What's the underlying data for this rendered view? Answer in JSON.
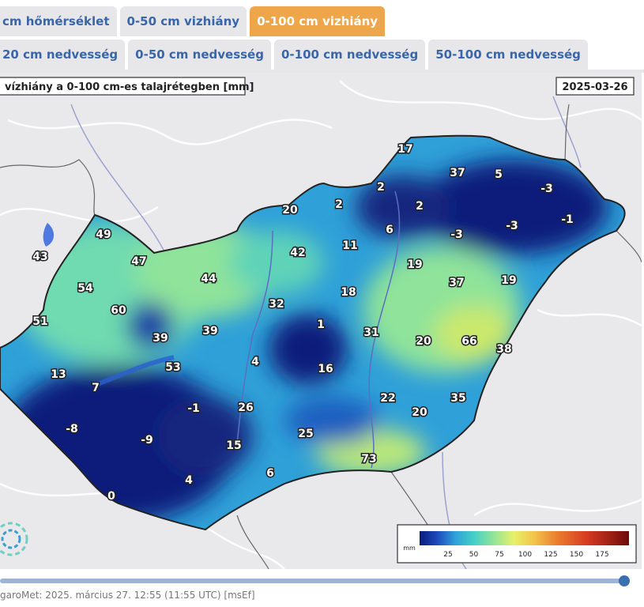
{
  "tabs_row1": [
    {
      "label": "cm hőmérséklet",
      "active": false
    },
    {
      "label": "0-50 cm vizhiány",
      "active": false
    },
    {
      "label": "0-100 cm vizhiány",
      "active": true
    }
  ],
  "tabs_row2": [
    {
      "label": "20 cm nedvesség"
    },
    {
      "label": "0-50 cm nedvesség"
    },
    {
      "label": "0-100 cm nedvesség"
    },
    {
      "label": "50-100 cm nedvesség"
    }
  ],
  "map": {
    "title": "vízhiány a 0-100 cm-es talajrétegben [mm]",
    "date": "2025-03-26",
    "values": [
      "17",
      "37",
      "5",
      "-3",
      "2",
      "2",
      "20",
      "2",
      "-1",
      "6",
      "-3",
      "-3",
      "49",
      "43",
      "47",
      "42",
      "11",
      "19",
      "54",
      "44",
      "37",
      "19",
      "60",
      "32",
      "18",
      "51",
      "39",
      "39",
      "1",
      "31",
      "20",
      "66",
      "38",
      "53",
      "13",
      "4",
      "16",
      "7",
      "-1",
      "26",
      "22",
      "35",
      "-8",
      "20",
      "25",
      "-9",
      "15",
      "73",
      "4",
      "6",
      "0"
    ],
    "legend": {
      "unit": "mm",
      "ticks": [
        "25",
        "50",
        "75",
        "100",
        "125",
        "150",
        "175"
      ],
      "colors": [
        "#0b1a7a",
        "#1f4fc0",
        "#2fa0d8",
        "#45d0c8",
        "#8fe39a",
        "#e7f06a",
        "#f3c24a",
        "#ea7b2e",
        "#d63b22",
        "#a81616",
        "#6e0b0b"
      ]
    }
  },
  "footer": "garoMet: 2025. március 27. 12:55 (11:55 UTC)  [msEf]",
  "slider": {
    "value": 1.0
  }
}
